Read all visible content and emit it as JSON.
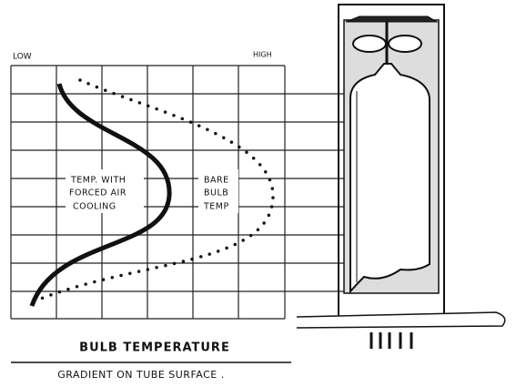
{
  "axis": {
    "low": "LOW",
    "high": "HIGH"
  },
  "labels": {
    "forced_air": [
      "TEMP. WITH",
      "FORCED AIR",
      "COOLING"
    ],
    "bare_bulb": [
      "BARE",
      "BULB",
      "TEMP"
    ]
  },
  "caption": {
    "title": "BULB TEMPERATURE",
    "subtitle": "GRADIENT ON TUBE SURFACE ."
  }
}
